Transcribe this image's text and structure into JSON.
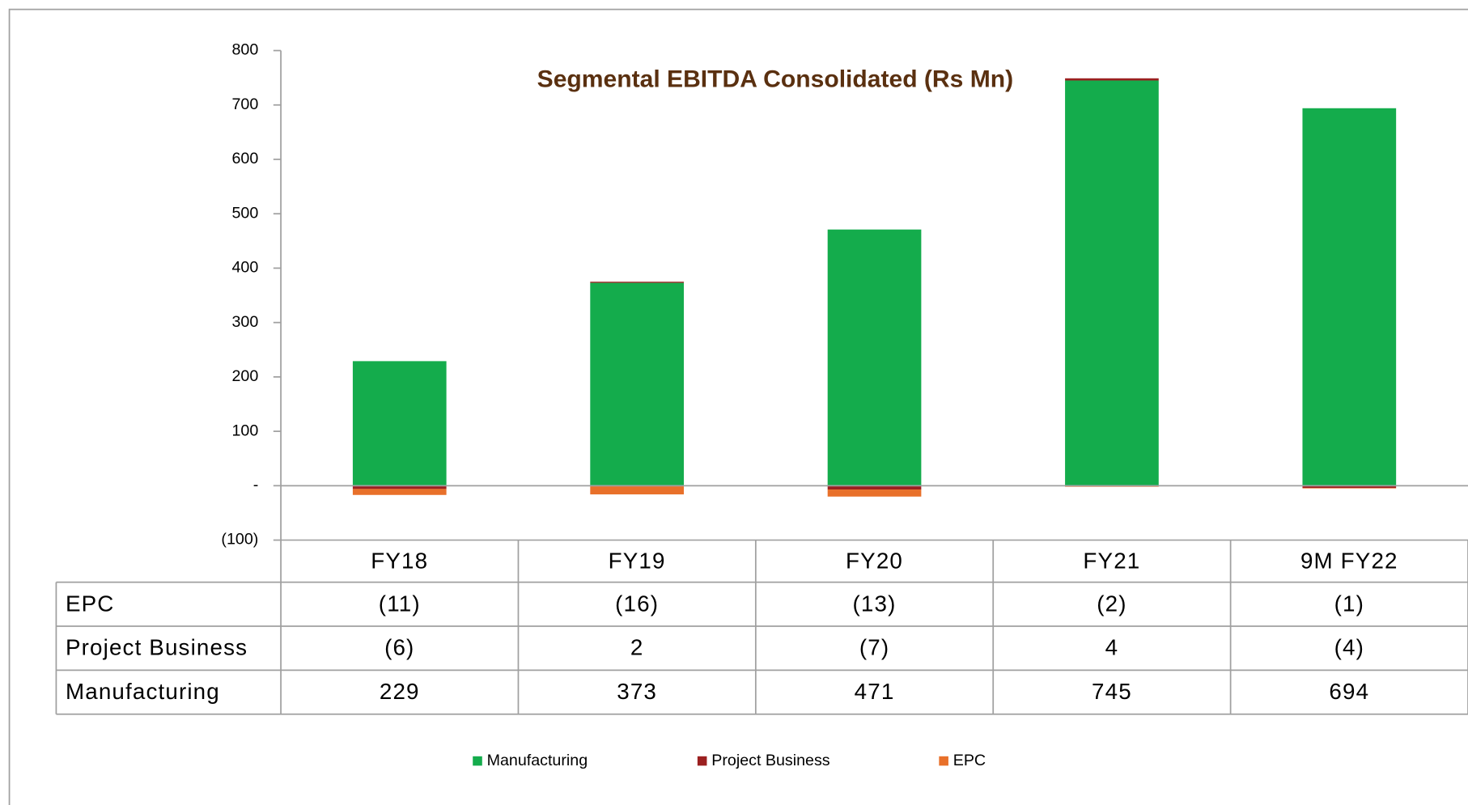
{
  "chart_data": {
    "type": "bar",
    "stacked": true,
    "title": "Segmental  EBITDA  Consolidated (Rs Mn)",
    "categories": [
      "FY18",
      "FY19",
      "FY20",
      "FY21",
      "9M FY22"
    ],
    "series": [
      {
        "name": "Manufacturing",
        "color": "#14ac4c",
        "values": [
          229,
          373,
          471,
          745,
          694
        ]
      },
      {
        "name": "Project Business",
        "color": "#9b2020",
        "values": [
          -6,
          2,
          -7,
          4,
          -4
        ],
        "value_labels": [
          "(6)",
          "2",
          "(7)",
          "4",
          "(4)"
        ]
      },
      {
        "name": "EPC",
        "color": "#e8702a",
        "values": [
          -11,
          -16,
          -13,
          -2,
          -1
        ],
        "value_labels": [
          "(11)",
          "(16)",
          "(13)",
          "(2)",
          "(1)"
        ]
      }
    ],
    "ylim": [
      -100,
      800
    ],
    "yticks": [
      {
        "value": -100,
        "label": "(100)"
      },
      {
        "value": 0,
        "label": "-"
      },
      100,
      200,
      300,
      400,
      500,
      600,
      700,
      800
    ],
    "legend": "bottom"
  }
}
